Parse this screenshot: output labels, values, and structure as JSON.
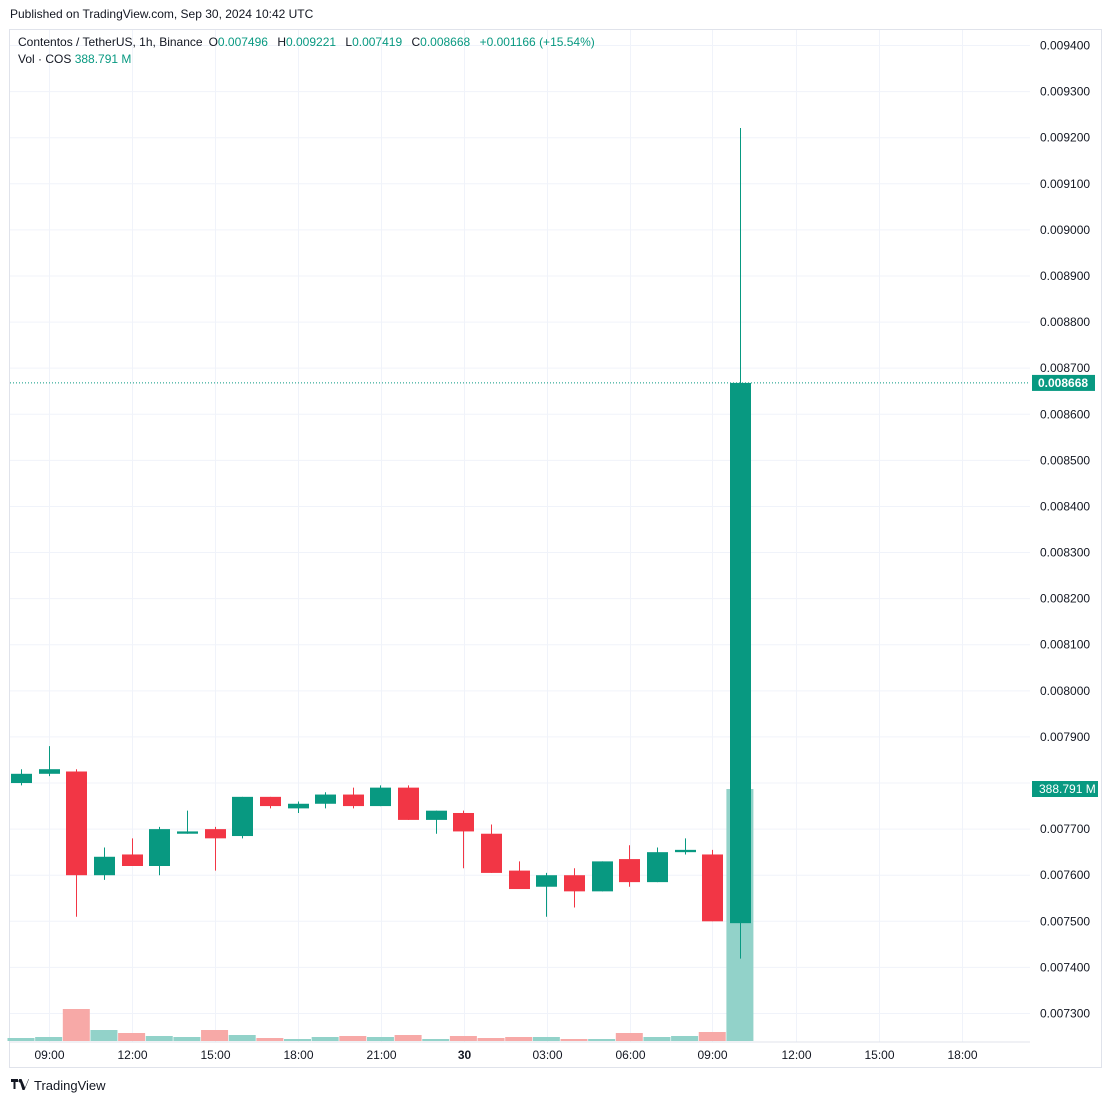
{
  "published": "Published on TradingView.com, Sep 30, 2024 10:42 UTC",
  "legend": {
    "symbol": "Contentos / TetherUS, 1h, Binance",
    "o_label": "O",
    "o_value": "0.007496",
    "h_label": "H",
    "h_value": "0.009221",
    "l_label": "L",
    "l_value": "0.007419",
    "c_label": "C",
    "c_value": "0.008668",
    "change": "+0.001166 (+15.54%)",
    "vol_label": "Vol · COS",
    "vol_value": "388.791 M"
  },
  "footer": {
    "brand": "TradingView"
  },
  "colors": {
    "up": "#089981",
    "down": "#f23645",
    "up_volume": "#92d2c9",
    "down_volume": "#f7a9a7",
    "grid": "#f0f3fa"
  },
  "chart_data": {
    "type": "candlestick",
    "interval": "1h",
    "y_axis_ticks": [
      "0.009400",
      "0.009300",
      "0.009200",
      "0.009100",
      "0.009000",
      "0.008900",
      "0.008800",
      "0.008700",
      "0.008600",
      "0.008500",
      "0.008400",
      "0.008300",
      "0.008200",
      "0.008100",
      "0.008000",
      "0.007900",
      "0.007700",
      "0.007600",
      "0.007500",
      "0.007400",
      "0.007300"
    ],
    "ylim": [
      0.00723,
      0.00944
    ],
    "x_tick_labels": [
      "09:00",
      "12:00",
      "15:00",
      "18:00",
      "21:00",
      "30",
      "03:00",
      "06:00",
      "09:00",
      "12:00",
      "15:00",
      "18:00"
    ],
    "last_price_label": "0.008668",
    "last_volume_label": "388.791 M",
    "candles": [
      {
        "o": 0.0078,
        "h": 0.00783,
        "l": 0.007795,
        "c": 0.00782
      },
      {
        "o": 0.00782,
        "h": 0.00788,
        "l": 0.007815,
        "c": 0.00783
      },
      {
        "o": 0.007825,
        "h": 0.00783,
        "l": 0.00751,
        "c": 0.0076
      },
      {
        "o": 0.0076,
        "h": 0.00766,
        "l": 0.00759,
        "c": 0.00764
      },
      {
        "o": 0.007645,
        "h": 0.00768,
        "l": 0.00762,
        "c": 0.00762
      },
      {
        "o": 0.00762,
        "h": 0.007705,
        "l": 0.0076,
        "c": 0.0077
      },
      {
        "o": 0.00769,
        "h": 0.00774,
        "l": 0.00769,
        "c": 0.007695
      },
      {
        "o": 0.0077,
        "h": 0.007705,
        "l": 0.00761,
        "c": 0.00768
      },
      {
        "o": 0.007685,
        "h": 0.00777,
        "l": 0.00768,
        "c": 0.00777
      },
      {
        "o": 0.00777,
        "h": 0.00777,
        "l": 0.007745,
        "c": 0.00775
      },
      {
        "o": 0.007745,
        "h": 0.00776,
        "l": 0.007735,
        "c": 0.007755
      },
      {
        "o": 0.007755,
        "h": 0.00778,
        "l": 0.007745,
        "c": 0.007775
      },
      {
        "o": 0.007775,
        "h": 0.00779,
        "l": 0.007745,
        "c": 0.00775
      },
      {
        "o": 0.00775,
        "h": 0.007795,
        "l": 0.00775,
        "c": 0.00779
      },
      {
        "o": 0.00779,
        "h": 0.007795,
        "l": 0.00772,
        "c": 0.00772
      },
      {
        "o": 0.00772,
        "h": 0.00774,
        "l": 0.00769,
        "c": 0.00774
      },
      {
        "o": 0.007735,
        "h": 0.00774,
        "l": 0.007615,
        "c": 0.007695
      },
      {
        "o": 0.00769,
        "h": 0.00771,
        "l": 0.007605,
        "c": 0.007605
      },
      {
        "o": 0.00761,
        "h": 0.00763,
        "l": 0.00757,
        "c": 0.00757
      },
      {
        "o": 0.007575,
        "h": 0.007605,
        "l": 0.00751,
        "c": 0.0076
      },
      {
        "o": 0.0076,
        "h": 0.007615,
        "l": 0.00753,
        "c": 0.007565
      },
      {
        "o": 0.007565,
        "h": 0.00763,
        "l": 0.007565,
        "c": 0.00763
      },
      {
        "o": 0.007635,
        "h": 0.007665,
        "l": 0.007575,
        "c": 0.007585
      },
      {
        "o": 0.007585,
        "h": 0.00766,
        "l": 0.007585,
        "c": 0.00765
      },
      {
        "o": 0.00765,
        "h": 0.00768,
        "l": 0.007645,
        "c": 0.007655
      },
      {
        "o": 0.007645,
        "h": 0.007655,
        "l": 0.0075,
        "c": 0.0075
      },
      {
        "o": 0.007496,
        "h": 0.009221,
        "l": 0.007419,
        "c": 0.008668
      }
    ],
    "volume": [
      3,
      4,
      32,
      11,
      8,
      5,
      4,
      11,
      6,
      3,
      2,
      4,
      5,
      4,
      6,
      2,
      5,
      3,
      4,
      4,
      2,
      2,
      8,
      4,
      5,
      9,
      252
    ],
    "volume_max": 270
  }
}
